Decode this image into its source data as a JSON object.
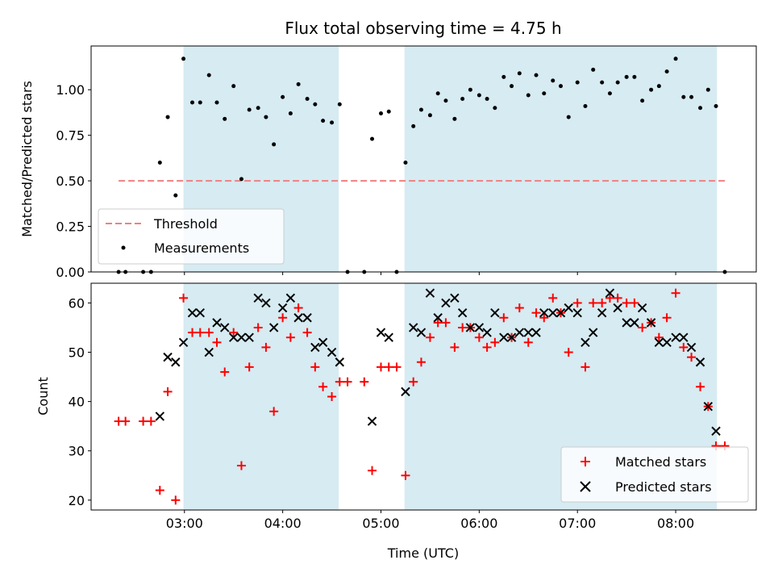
{
  "chart_data": [
    {
      "type": "scatter",
      "title": "Flux total observing time = 4.75 h",
      "xlabel": "",
      "ylabel": "Matched/Predicted stars",
      "xlim": [
        2.05,
        8.82
      ],
      "ylim": [
        0,
        1.24
      ],
      "yticks": [
        0,
        0.25,
        0.5,
        0.75,
        1.0
      ],
      "ytick_labels": [
        "0.00",
        "0.25",
        "0.50",
        "0.75",
        "1.00"
      ],
      "xticks": [
        3,
        4,
        5,
        6,
        7,
        8
      ],
      "shaded_intervals": [
        [
          2.99,
          4.57
        ],
        [
          5.24,
          8.42
        ]
      ],
      "shade_color": "#add8e6",
      "legend_position": "lower-left",
      "threshold": {
        "name": "Threshold",
        "value": 0.5,
        "x_range": [
          2.33,
          8.5
        ],
        "color": "#f08080"
      },
      "series": [
        {
          "name": "Measurements",
          "color": "#000000",
          "x": [
            2.33,
            2.4,
            2.58,
            2.66,
            2.75,
            2.83,
            2.91,
            2.99,
            3.08,
            3.16,
            3.25,
            3.33,
            3.41,
            3.5,
            3.58,
            3.66,
            3.75,
            3.83,
            3.91,
            4.0,
            4.08,
            4.16,
            4.25,
            4.33,
            4.41,
            4.5,
            4.58,
            4.66,
            4.83,
            4.91,
            5.0,
            5.08,
            5.16,
            5.25,
            5.33,
            5.41,
            5.5,
            5.58,
            5.66,
            5.75,
            5.83,
            5.91,
            6.0,
            6.08,
            6.16,
            6.25,
            6.33,
            6.41,
            6.5,
            6.58,
            6.66,
            6.75,
            6.83,
            6.91,
            7.0,
            7.08,
            7.16,
            7.25,
            7.33,
            7.41,
            7.5,
            7.58,
            7.66,
            7.75,
            7.83,
            7.91,
            8.0,
            8.08,
            8.16,
            8.25,
            8.33,
            8.41,
            8.5
          ],
          "y": [
            0.0,
            0.0,
            0.0,
            0.0,
            0.6,
            0.85,
            0.42,
            1.17,
            0.93,
            0.93,
            1.08,
            0.93,
            0.84,
            1.02,
            0.51,
            0.89,
            0.9,
            0.85,
            0.7,
            0.96,
            0.87,
            1.03,
            0.95,
            0.92,
            0.83,
            0.82,
            0.92,
            0.0,
            0.0,
            0.73,
            0.87,
            0.88,
            0.0,
            0.6,
            0.8,
            0.89,
            0.86,
            0.98,
            0.94,
            0.84,
            0.95,
            1.0,
            0.97,
            0.95,
            0.9,
            1.07,
            1.02,
            1.09,
            0.97,
            1.08,
            0.98,
            1.05,
            1.02,
            0.85,
            1.04,
            0.91,
            1.11,
            1.04,
            0.98,
            1.04,
            1.07,
            1.07,
            0.94,
            1.0,
            1.02,
            1.1,
            1.17,
            0.96,
            0.96,
            0.9,
            1.0,
            0.91,
            0.0
          ]
        }
      ]
    },
    {
      "type": "scatter",
      "title": "",
      "xlabel": "Time (UTC)",
      "ylabel": "Count",
      "xlim": [
        2.05,
        8.82
      ],
      "ylim": [
        18,
        64
      ],
      "yticks": [
        20,
        30,
        40,
        50,
        60
      ],
      "xticks": [
        3,
        4,
        5,
        6,
        7,
        8
      ],
      "xtick_labels": [
        "03:00",
        "04:00",
        "05:00",
        "06:00",
        "07:00",
        "08:00"
      ],
      "shaded_intervals": [
        [
          2.99,
          4.57
        ],
        [
          5.24,
          8.42
        ]
      ],
      "shade_color": "#add8e6",
      "legend_position": "lower-right",
      "series": [
        {
          "name": "Matched stars",
          "marker": "+",
          "color": "#ff0000",
          "x": [
            2.33,
            2.4,
            2.58,
            2.66,
            2.75,
            2.83,
            2.91,
            2.99,
            3.08,
            3.16,
            3.25,
            3.33,
            3.41,
            3.5,
            3.58,
            3.66,
            3.75,
            3.83,
            3.91,
            4.0,
            4.08,
            4.16,
            4.25,
            4.33,
            4.41,
            4.5,
            4.58,
            4.66,
            4.83,
            4.91,
            5.0,
            5.08,
            5.16,
            5.25,
            5.33,
            5.41,
            5.5,
            5.58,
            5.66,
            5.75,
            5.83,
            5.91,
            6.0,
            6.08,
            6.16,
            6.25,
            6.33,
            6.41,
            6.5,
            6.58,
            6.66,
            6.75,
            6.83,
            6.91,
            7.0,
            7.08,
            7.16,
            7.25,
            7.33,
            7.41,
            7.5,
            7.58,
            7.66,
            7.75,
            7.83,
            7.91,
            8.0,
            8.08,
            8.16,
            8.25,
            8.33,
            8.41,
            8.5
          ],
          "y": [
            36,
            36,
            36,
            36,
            22,
            42,
            20,
            61,
            54,
            54,
            54,
            52,
            46,
            54,
            27,
            47,
            55,
            51,
            38,
            57,
            53,
            59,
            54,
            47,
            43,
            41,
            44,
            44,
            44,
            26,
            47,
            47,
            47,
            25,
            44,
            48,
            53,
            56,
            56,
            51,
            55,
            55,
            53,
            51,
            52,
            57,
            53,
            59,
            52,
            58,
            57,
            61,
            58,
            50,
            60,
            47,
            60,
            60,
            61,
            61,
            60,
            60,
            55,
            56,
            53,
            57,
            62,
            51,
            49,
            43,
            39,
            31,
            31
          ]
        },
        {
          "name": "Predicted stars",
          "marker": "x",
          "color": "#000000",
          "x": [
            2.75,
            2.83,
            2.91,
            2.99,
            3.08,
            3.16,
            3.25,
            3.33,
            3.41,
            3.5,
            3.58,
            3.66,
            3.75,
            3.83,
            3.91,
            4.0,
            4.08,
            4.16,
            4.25,
            4.33,
            4.41,
            4.5,
            4.58,
            4.91,
            5.0,
            5.08,
            5.25,
            5.33,
            5.41,
            5.5,
            5.58,
            5.66,
            5.75,
            5.83,
            5.91,
            6.0,
            6.08,
            6.16,
            6.25,
            6.33,
            6.41,
            6.5,
            6.58,
            6.66,
            6.75,
            6.83,
            6.91,
            7.0,
            7.08,
            7.16,
            7.25,
            7.33,
            7.41,
            7.5,
            7.58,
            7.66,
            7.75,
            7.83,
            7.91,
            8.0,
            8.08,
            8.16,
            8.25,
            8.33,
            8.41
          ],
          "y": [
            37,
            49,
            48,
            52,
            58,
            58,
            50,
            56,
            55,
            53,
            53,
            53,
            61,
            60,
            55,
            59,
            61,
            57,
            57,
            51,
            52,
            50,
            48,
            36,
            54,
            53,
            42,
            55,
            54,
            62,
            57,
            60,
            61,
            58,
            55,
            55,
            54,
            58,
            53,
            53,
            54,
            54,
            54,
            58,
            58,
            58,
            59,
            58,
            52,
            54,
            58,
            62,
            59,
            56,
            56,
            59,
            56,
            52,
            52,
            53,
            53,
            51,
            48,
            39,
            34
          ]
        }
      ]
    }
  ]
}
